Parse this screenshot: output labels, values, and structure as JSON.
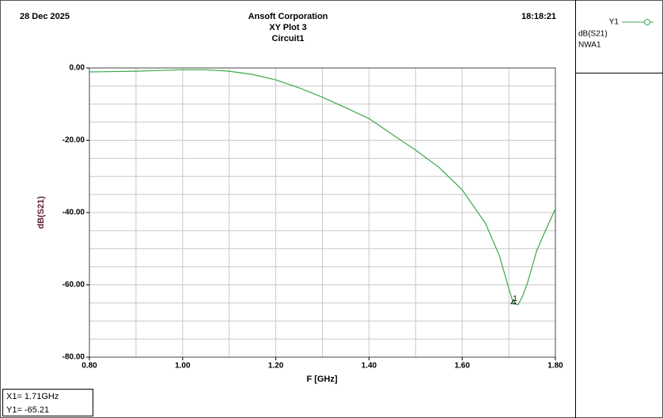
{
  "chart_data": {
    "type": "line",
    "header": {
      "date": "28 Dec 2025",
      "company": "Ansoft Corporation",
      "title": "XY Plot 3",
      "subtitle": "Circuit1",
      "time": "18:18:21"
    },
    "x_label": "F [GHz]",
    "y_label": "dB(S21)",
    "x": [
      0.8,
      0.85,
      0.9,
      0.95,
      1.0,
      1.05,
      1.1,
      1.15,
      1.2,
      1.25,
      1.3,
      1.35,
      1.4,
      1.45,
      1.5,
      1.55,
      1.6,
      1.65,
      1.68,
      1.69,
      1.7,
      1.71,
      1.72,
      1.73,
      1.74,
      1.76,
      1.78,
      1.8
    ],
    "series": [
      {
        "name": "Y1",
        "expression": "dB(S21)",
        "solution": "NWA1",
        "color": "#3aa84a",
        "values": [
          -1.1,
          -1.0,
          -0.9,
          -0.7,
          -0.5,
          -0.5,
          -0.9,
          -1.8,
          -3.3,
          -5.5,
          -8.1,
          -11.0,
          -14.0,
          -18.4,
          -22.7,
          -27.5,
          -33.7,
          -43.0,
          -52.0,
          -56.5,
          -61.0,
          -65.2,
          -65.5,
          -63.0,
          -59.5,
          -50.5,
          -44.6,
          -39.0
        ]
      }
    ],
    "marker": {
      "label": "1",
      "x": 1.71,
      "y": -65.21,
      "readout": [
        "X1= 1.71GHz",
        "Y1= -65.21"
      ]
    },
    "xlim": [
      0.8,
      1.8
    ],
    "ylim": [
      -80,
      0
    ],
    "xticks": [
      {
        "value": 0.8,
        "label": "0.80"
      },
      {
        "value": 1.0,
        "label": "1.00"
      },
      {
        "value": 1.2,
        "label": "1.20"
      },
      {
        "value": 1.4,
        "label": "1.40"
      },
      {
        "value": 1.6,
        "label": "1.60"
      },
      {
        "value": 1.8,
        "label": "1.80"
      }
    ],
    "yticks": [
      {
        "value": 0,
        "label": "0.00"
      },
      {
        "value": -20,
        "label": "-20.00"
      },
      {
        "value": -40,
        "label": "-40.00"
      },
      {
        "value": -60,
        "label": "-60.00"
      },
      {
        "value": -80,
        "label": "-80.00"
      }
    ],
    "xgrid": [
      0.8,
      0.9,
      1.0,
      1.1,
      1.2,
      1.3,
      1.4,
      1.5,
      1.6,
      1.7,
      1.8
    ],
    "ygrid": [
      0,
      -5,
      -10,
      -15,
      -20,
      -25,
      -30,
      -35,
      -40,
      -45,
      -50,
      -55,
      -60,
      -65,
      -70,
      -75,
      -80
    ],
    "grid": true
  }
}
